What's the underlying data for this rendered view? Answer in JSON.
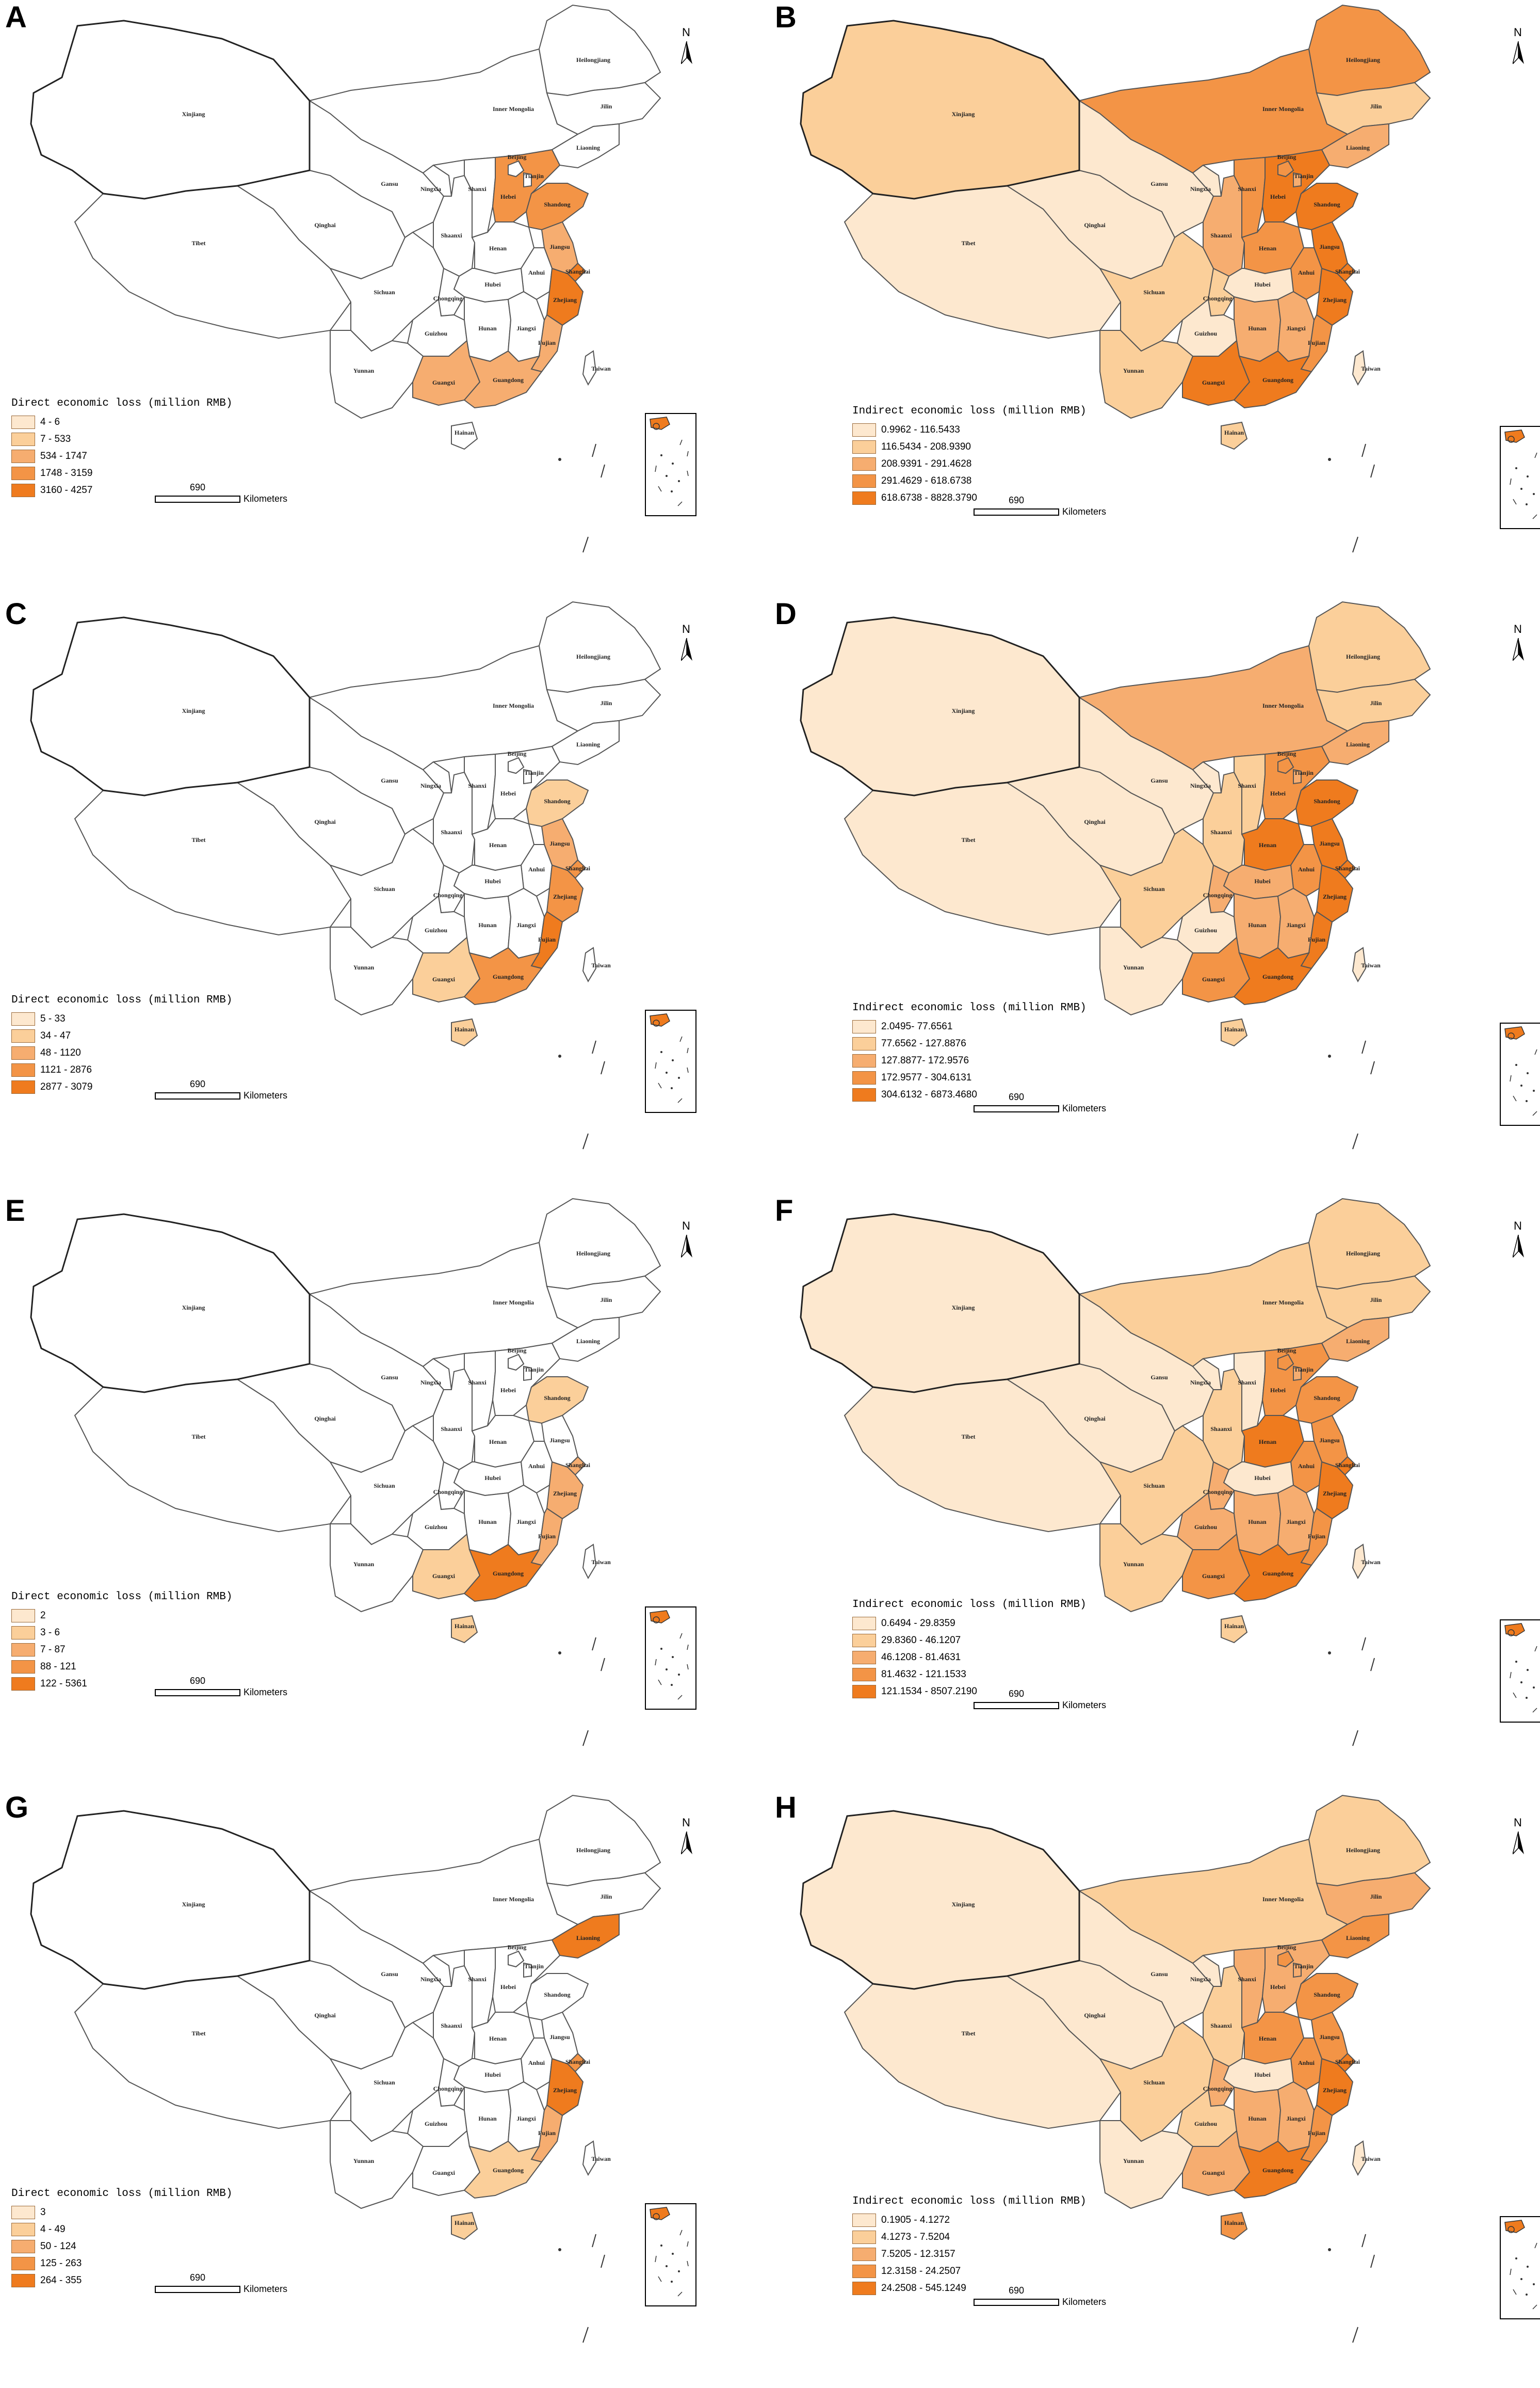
{
  "panels": [
    {
      "letter": "A",
      "legend_title": "Direct economic loss (million RMB)",
      "classes": [
        "4 - 6",
        "7 - 533",
        "534 - 1747",
        "1748 - 3159",
        "3160 - 4257"
      ],
      "colors": {
        "Heilongjiang": 0,
        "Jilin": 0,
        "Liaoning": 0,
        "Inner Mongolia": 0,
        "Xinjiang": 0,
        "Tibet": 0,
        "Qinghai": 0,
        "Gansu": 0,
        "Ningxia": 0,
        "Shaanxi": 0,
        "Shanxi": 0,
        "Beijing": 0,
        "Tianjin": 0,
        "Hebei": 3,
        "Shandong": 3,
        "Henan": 0,
        "Jiangsu": 2,
        "Shanghai": 4,
        "Anhui": 0,
        "Hubei": 0,
        "Sichuan": 0,
        "Chongqing": 0,
        "Guizhou": 0,
        "Yunnan": 0,
        "Hunan": 0,
        "Jiangxi": 0,
        "Zhejiang": 4,
        "Fujian": 2,
        "Guangxi": 2,
        "Guangdong": 2,
        "Hainan": 0,
        "Taiwan": 0
      }
    },
    {
      "letter": "B",
      "legend_title": "Indirect economic loss (million RMB)",
      "classes": [
        "0.9962 - 116.5433",
        "116.5434 - 208.9390",
        "208.9391 - 291.4628",
        "291.4629 - 618.6738",
        "618.6738 - 8828.3790"
      ],
      "colors": {
        "Heilongjiang": 3,
        "Jilin": 1,
        "Liaoning": 2,
        "Inner Mongolia": 3,
        "Xinjiang": 1,
        "Tibet": 0,
        "Qinghai": 0,
        "Gansu": 0,
        "Ningxia": 0,
        "Shaanxi": 2,
        "Shanxi": 3,
        "Beijing": 3,
        "Tianjin": 2,
        "Hebei": 4,
        "Shandong": 4,
        "Henan": 3,
        "Jiangsu": 4,
        "Shanghai": 4,
        "Anhui": 3,
        "Hubei": 0,
        "Sichuan": 1,
        "Chongqing": 1,
        "Guizhou": 0,
        "Yunnan": 1,
        "Hunan": 2,
        "Jiangxi": 2,
        "Zhejiang": 4,
        "Fujian": 3,
        "Guangxi": 4,
        "Guangdong": 4,
        "Hainan": 1,
        "Taiwan": 0
      }
    },
    {
      "letter": "C",
      "legend_title": "Direct economic loss (million RMB)",
      "classes": [
        "5 - 33",
        "34 - 47",
        "48 - 1120",
        "1121 - 2876",
        "2877 - 3079"
      ],
      "colors": {
        "Heilongjiang": 0,
        "Jilin": 0,
        "Liaoning": 0,
        "Inner Mongolia": 0,
        "Xinjiang": 0,
        "Tibet": 0,
        "Qinghai": 0,
        "Gansu": 0,
        "Ningxia": 0,
        "Shaanxi": 0,
        "Shanxi": 0,
        "Beijing": 0,
        "Tianjin": 0,
        "Hebei": 0,
        "Shandong": 1,
        "Henan": 0,
        "Jiangsu": 2,
        "Shanghai": 3,
        "Anhui": 0,
        "Hubei": 0,
        "Sichuan": 0,
        "Chongqing": 0,
        "Guizhou": 0,
        "Yunnan": 0,
        "Hunan": 0,
        "Jiangxi": 0,
        "Zhejiang": 3,
        "Fujian": 4,
        "Guangxi": 1,
        "Guangdong": 3,
        "Hainan": 1,
        "Taiwan": 0
      }
    },
    {
      "letter": "D",
      "legend_title": "Indirect economic loss (million RMB)",
      "classes": [
        "2.0495- 77.6561",
        "77.6562 - 127.8876",
        "127.8877- 172.9576",
        "172.9577 - 304.6131",
        "304.6132 - 6873.4680"
      ],
      "colors": {
        "Heilongjiang": 1,
        "Jilin": 1,
        "Liaoning": 2,
        "Inner Mongolia": 2,
        "Xinjiang": 0,
        "Tibet": 0,
        "Qinghai": 0,
        "Gansu": 0,
        "Ningxia": 0,
        "Shaanxi": 1,
        "Shanxi": 1,
        "Beijing": 3,
        "Tianjin": 2,
        "Hebei": 3,
        "Shandong": 4,
        "Henan": 4,
        "Jiangsu": 4,
        "Shanghai": 4,
        "Anhui": 3,
        "Hubei": 2,
        "Sichuan": 1,
        "Chongqing": 2,
        "Guizhou": 0,
        "Yunnan": 0,
        "Hunan": 2,
        "Jiangxi": 2,
        "Zhejiang": 4,
        "Fujian": 4,
        "Guangxi": 3,
        "Guangdong": 4,
        "Hainan": 1,
        "Taiwan": 0
      }
    },
    {
      "letter": "E",
      "legend_title": "Direct economic loss (million RMB)",
      "classes": [
        "2",
        "3 - 6",
        "7 - 87",
        "88 - 121",
        "122 - 5361"
      ],
      "colors": {
        "Heilongjiang": 0,
        "Jilin": 0,
        "Liaoning": 0,
        "Inner Mongolia": 0,
        "Xinjiang": 0,
        "Tibet": 0,
        "Qinghai": 0,
        "Gansu": 0,
        "Ningxia": 0,
        "Shaanxi": 0,
        "Shanxi": 0,
        "Beijing": 0,
        "Tianjin": 0,
        "Hebei": 0,
        "Shandong": 1,
        "Henan": 0,
        "Jiangsu": 0,
        "Shanghai": 2,
        "Anhui": 0,
        "Hubei": 0,
        "Sichuan": 0,
        "Chongqing": 0,
        "Guizhou": 0,
        "Yunnan": 0,
        "Hunan": 0,
        "Jiangxi": 0,
        "Zhejiang": 2,
        "Fujian": 2,
        "Guangxi": 1,
        "Guangdong": 4,
        "Hainan": 1,
        "Taiwan": 0
      }
    },
    {
      "letter": "F",
      "legend_title": "Indirect economic loss (million RMB)",
      "classes": [
        "0.6494 - 29.8359",
        "29.8360 - 46.1207",
        "46.1208 - 81.4631",
        "81.4632 - 121.1533",
        "121.1534 - 8507.2190"
      ],
      "colors": {
        "Heilongjiang": 1,
        "Jilin": 1,
        "Liaoning": 2,
        "Inner Mongolia": 1,
        "Xinjiang": 0,
        "Tibet": 0,
        "Qinghai": 0,
        "Gansu": 0,
        "Ningxia": 0,
        "Shaanxi": 1,
        "Shanxi": 0,
        "Beijing": 3,
        "Tianjin": 2,
        "Hebei": 3,
        "Shandong": 3,
        "Henan": 4,
        "Jiangsu": 3,
        "Shanghai": 4,
        "Anhui": 3,
        "Hubei": 0,
        "Sichuan": 1,
        "Chongqing": 2,
        "Guizhou": 2,
        "Yunnan": 1,
        "Hunan": 2,
        "Jiangxi": 2,
        "Zhejiang": 4,
        "Fujian": 3,
        "Guangxi": 3,
        "Guangdong": 4,
        "Hainan": 1,
        "Taiwan": 0
      }
    },
    {
      "letter": "G",
      "legend_title": "Direct economic loss (million RMB)",
      "classes": [
        "3",
        "4 - 49",
        "50 - 124",
        "125 - 263",
        "264 - 355"
      ],
      "colors": {
        "Heilongjiang": 0,
        "Jilin": 0,
        "Liaoning": 4,
        "Inner Mongolia": 0,
        "Xinjiang": 0,
        "Tibet": 0,
        "Qinghai": 0,
        "Gansu": 0,
        "Ningxia": 0,
        "Shaanxi": 0,
        "Shanxi": 0,
        "Beijing": 0,
        "Tianjin": 0,
        "Hebei": 0,
        "Shandong": 0,
        "Henan": 0,
        "Jiangsu": 0,
        "Shanghai": 3,
        "Anhui": 0,
        "Hubei": 0,
        "Sichuan": 0,
        "Chongqing": 0,
        "Guizhou": 0,
        "Yunnan": 0,
        "Hunan": 0,
        "Jiangxi": 0,
        "Zhejiang": 4,
        "Fujian": 2,
        "Guangxi": 0,
        "Guangdong": 1,
        "Hainan": 1,
        "Taiwan": 0
      }
    },
    {
      "letter": "H",
      "legend_title": "Indirect economic loss (million RMB)",
      "classes": [
        "0.1905 - 4.1272",
        "4.1273 - 7.5204",
        "7.5205 - 12.3157",
        "12.3158 - 24.2507",
        "24.2508 - 545.1249"
      ],
      "colors": {
        "Heilongjiang": 1,
        "Jilin": 2,
        "Liaoning": 3,
        "Inner Mongolia": 1,
        "Xinjiang": 0,
        "Tibet": 0,
        "Qinghai": 0,
        "Gansu": 0,
        "Ningxia": 0,
        "Shaanxi": 1,
        "Shanxi": 2,
        "Beijing": 3,
        "Tianjin": 2,
        "Hebei": 2,
        "Shandong": 3,
        "Henan": 3,
        "Jiangsu": 3,
        "Shanghai": 4,
        "Anhui": 3,
        "Hubei": 0,
        "Sichuan": 1,
        "Chongqing": 2,
        "Guizhou": 1,
        "Yunnan": 0,
        "Hunan": 2,
        "Jiangxi": 2,
        "Zhejiang": 4,
        "Fujian": 3,
        "Guangxi": 2,
        "Guangdong": 4,
        "Hainan": 3,
        "Taiwan": 0
      }
    }
  ],
  "palette_direct": [
    "#fde8cf",
    "#fbcf9a",
    "#f6ad70",
    "#f39446",
    "#ef7b1e"
  ],
  "palette_indirect": [
    "#fde8cf",
    "#fbcf9a",
    "#f6ad70",
    "#f39446",
    "#ef7b1e"
  ],
  "white_fill": "#ffffff",
  "scale_value": "690",
  "scale_unit": "Kilometers",
  "compass_label": "N",
  "province_labels": [
    {
      "key": "Heilongjiang",
      "text": "Heilongjiang"
    },
    {
      "key": "Jilin",
      "text": "Jilin"
    },
    {
      "key": "Liaoning",
      "text": "Liaoning"
    },
    {
      "key": "Inner Mongolia",
      "text": "Inner Mongolia"
    },
    {
      "key": "Xinjiang",
      "text": "Xinjiang"
    },
    {
      "key": "Tibet",
      "text": "Tibet"
    },
    {
      "key": "Qinghai",
      "text": "Qinghai"
    },
    {
      "key": "Gansu",
      "text": "Gansu"
    },
    {
      "key": "Ningxia",
      "text": "Ningxia"
    },
    {
      "key": "Shaanxi",
      "text": "Shaanxi"
    },
    {
      "key": "Shanxi",
      "text": "Shanxi"
    },
    {
      "key": "Beijing",
      "text": "Beijing"
    },
    {
      "key": "Tianjin",
      "text": "Tianjin"
    },
    {
      "key": "Hebei",
      "text": "Hebei"
    },
    {
      "key": "Shandong",
      "text": "Shandong"
    },
    {
      "key": "Henan",
      "text": "Henan"
    },
    {
      "key": "Jiangsu",
      "text": "Jiangsu"
    },
    {
      "key": "Shanghai",
      "text": "Shanghai"
    },
    {
      "key": "Anhui",
      "text": "Anhui"
    },
    {
      "key": "Hubei",
      "text": "Hubei"
    },
    {
      "key": "Sichuan",
      "text": "Sichuan"
    },
    {
      "key": "Chongqing",
      "text": "Chongqing"
    },
    {
      "key": "Guizhou",
      "text": "Guizhou"
    },
    {
      "key": "Yunnan",
      "text": "Yunnan"
    },
    {
      "key": "Hunan",
      "text": "Hunan"
    },
    {
      "key": "Jiangxi",
      "text": "Jiangxi"
    },
    {
      "key": "Zhejiang",
      "text": "Zhejiang"
    },
    {
      "key": "Fujian",
      "text": "Fujian"
    },
    {
      "key": "Guangxi",
      "text": "Guangxi"
    },
    {
      "key": "Guangdong",
      "text": "Guangdong"
    },
    {
      "key": "Hainan",
      "text": "Hainan"
    },
    {
      "key": "Taiwan",
      "text": "Taiwan"
    }
  ]
}
